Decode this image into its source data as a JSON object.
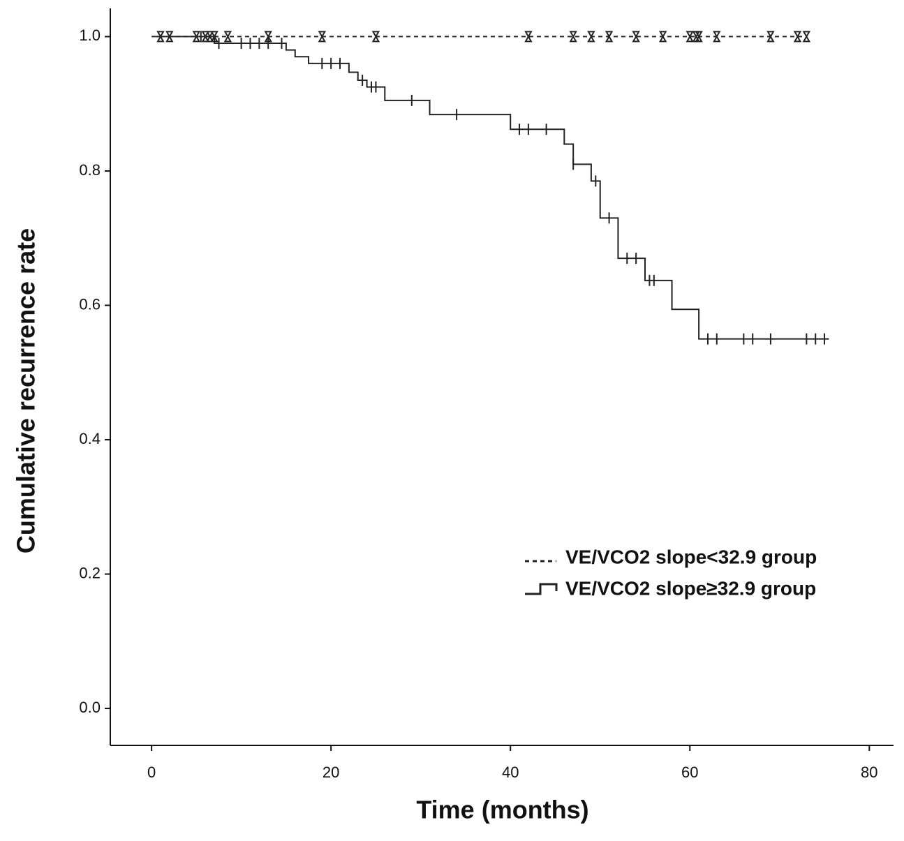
{
  "chart_data": {
    "type": "km",
    "x_label": "Time (months)",
    "y_label": "Cumulative recurrence rate",
    "xlim": [
      -4.6,
      82.7
    ],
    "ylim": [
      -0.055,
      1.042
    ],
    "xticks": [
      0,
      20,
      40,
      60,
      80
    ],
    "yticks": [
      {
        "value": 0,
        "label": "0.0"
      },
      {
        "value": 0.2,
        "label": "0.2"
      },
      {
        "value": 0.4,
        "label": "0.4"
      },
      {
        "value": 0.6,
        "label": "0.6"
      },
      {
        "value": 0.8,
        "label": "0.8"
      },
      {
        "value": 1,
        "label": "1.0"
      }
    ],
    "legend": "lower right",
    "series": [
      {
        "name": "VE/VCO2 slope<32.9 group",
        "color": "#222222",
        "style": "dashed",
        "x": [
          1,
          73
        ],
        "values": [
          1,
          1
        ],
        "censored_x": [
          1,
          2,
          5,
          6,
          6.5,
          7,
          8.5,
          13,
          19,
          25,
          42,
          47,
          49,
          51,
          54,
          57,
          60,
          60.7,
          61,
          63,
          69,
          72,
          73
        ],
        "censored_values": [
          1,
          1,
          1,
          1,
          1,
          1,
          1,
          1,
          1,
          1,
          1,
          1,
          1,
          1,
          1,
          1,
          1,
          1,
          1,
          1,
          1,
          1,
          1
        ]
      },
      {
        "name": "VE/VCO2 slope≥32.9 group",
        "color": "#222222",
        "style": "solid",
        "x": [
          0,
          7,
          15,
          16,
          17.5,
          22,
          23,
          24,
          26,
          31,
          40,
          46,
          47,
          49,
          50,
          52,
          55,
          58,
          61,
          75.5
        ],
        "values": [
          1,
          0.99,
          0.98,
          0.97,
          0.96,
          0.947,
          0.935,
          0.925,
          0.905,
          0.884,
          0.862,
          0.84,
          0.81,
          0.785,
          0.73,
          0.67,
          0.637,
          0.594,
          0.55,
          0.55
        ],
        "censored_x": [
          5.5,
          7.5,
          10,
          11,
          12,
          13,
          14.5,
          19,
          20,
          21,
          23.5,
          24.5,
          25,
          29,
          34,
          41,
          42,
          44,
          47,
          49.5,
          51,
          53,
          54,
          55.5,
          56,
          62,
          63,
          66,
          67,
          69,
          73,
          74,
          75
        ],
        "censored_values": [
          1,
          0.99,
          0.99,
          0.99,
          0.99,
          0.99,
          0.99,
          0.96,
          0.96,
          0.96,
          0.935,
          0.925,
          0.925,
          0.905,
          0.884,
          0.862,
          0.862,
          0.862,
          0.81,
          0.785,
          0.73,
          0.67,
          0.67,
          0.637,
          0.637,
          0.55,
          0.55,
          0.55,
          0.55,
          0.55,
          0.55,
          0.55,
          0.55
        ]
      }
    ]
  }
}
